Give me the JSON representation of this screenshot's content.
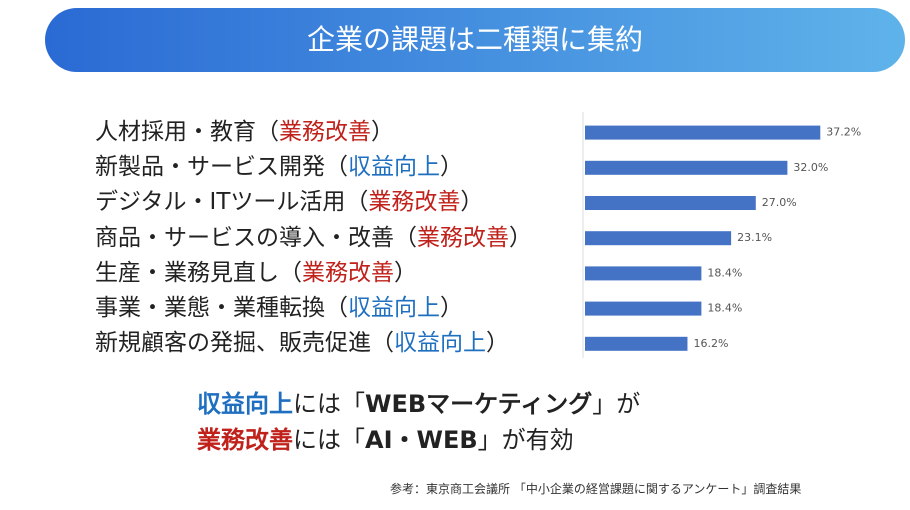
{
  "header": {
    "title": "企業の課題は二種類に集約"
  },
  "chart_data": {
    "type": "bar",
    "orientation": "horizontal",
    "color": "#4472c4",
    "categories": [
      {
        "name": "人材採用・教育（",
        "tag": "業務改善",
        "close": "）",
        "tag_color": "#c0211b"
      },
      {
        "name": "新製品・サービス開発（",
        "tag": "収益向上",
        "close": "）",
        "tag_color": "#1f6fc1"
      },
      {
        "name": "デジタル・ITツール活用（",
        "tag": "業務改善",
        "close": "）",
        "tag_color": "#c0211b"
      },
      {
        "name": "商品・サービスの導入・改善（",
        "tag": "業務改善",
        "close": "）",
        "tag_color": "#c0211b"
      },
      {
        "name": "生産・業務見直し（",
        "tag": "業務改善",
        "close": "）",
        "tag_color": "#c0211b"
      },
      {
        "name": "事業・業態・業種転換（",
        "tag": "収益向上",
        "close": "）",
        "tag_color": "#1f6fc1"
      },
      {
        "name": "新規顧客の発掘、販売促進（",
        "tag": "収益向上",
        "close": "）",
        "tag_color": "#1f6fc1"
      }
    ],
    "values": [
      37.2,
      32.0,
      27.0,
      23.1,
      18.4,
      18.4,
      16.2
    ],
    "value_labels": [
      "37.2%",
      "32.0%",
      "27.0%",
      "23.1%",
      "18.4%",
      "18.4%",
      "16.2%"
    ],
    "xlim": [
      0,
      40
    ]
  },
  "conclusion": [
    {
      "parts": [
        {
          "text": "収益向上",
          "color": "#1f6fc1",
          "bold": true
        },
        {
          "text": "には「",
          "color": "#222222",
          "bold": false
        },
        {
          "text": "WEBマーケティング",
          "color": "#222222",
          "bold": true
        },
        {
          "text": "」が",
          "color": "#222222",
          "bold": false
        }
      ]
    },
    {
      "parts": [
        {
          "text": "業務改善",
          "color": "#c0211b",
          "bold": true
        },
        {
          "text": "には「",
          "color": "#222222",
          "bold": false
        },
        {
          "text": "AI・WEB",
          "color": "#222222",
          "bold": true
        },
        {
          "text": "」が有効",
          "color": "#222222",
          "bold": false
        }
      ]
    }
  ],
  "source": "参考：東京商工会議所 「中小企業の経営課題に関するアンケート」調査結果"
}
